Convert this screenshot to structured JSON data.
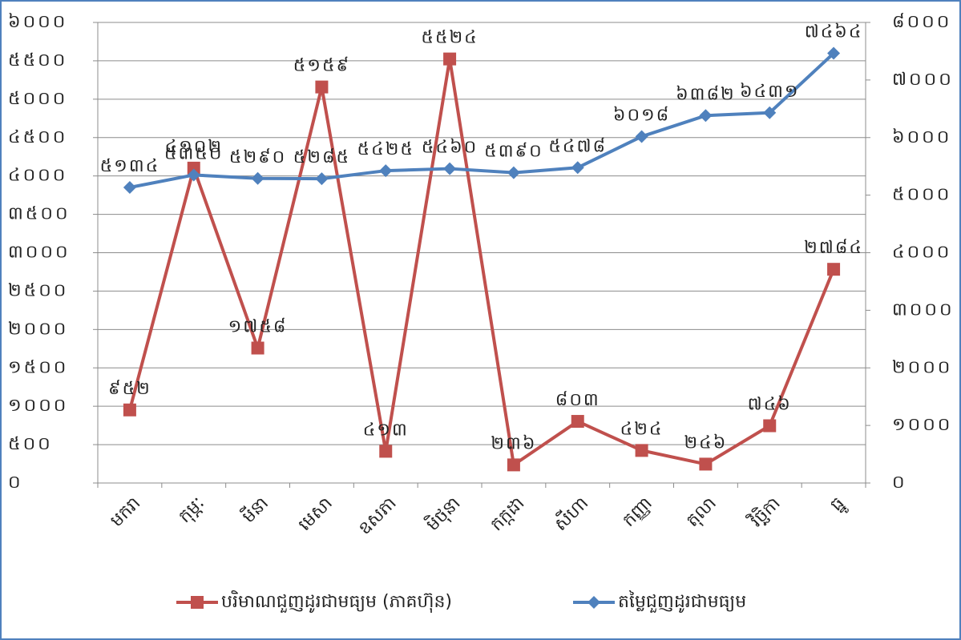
{
  "chart_data": {
    "type": "line",
    "categories": [
      "មករា",
      "កុម្ភៈ",
      "មីនា",
      "មេសា",
      "ឧសភា",
      "មិថុនា",
      "កក្កដា",
      "សីហា",
      "កញ្ញា",
      "តុលា",
      "វិច្ឆិកា",
      "ធ្នូ"
    ],
    "series": [
      {
        "name": "បរិមាណជួញដូរជាមធ្យម (ភាគហ៊ុន)",
        "color": "#c0504d",
        "marker": "square",
        "values": [
          952,
          4102,
          1758,
          5159,
          413,
          5524,
          236,
          803,
          424,
          246,
          746,
          2784
        ],
        "value_labels": [
          "៩៥២",
          "៤១០២",
          "១៧៥៨",
          "៥១៥៩",
          "៤១៣",
          "៥៥២៤",
          "២៣៦",
          "៨០៣",
          "៤២៤",
          "២៤៦",
          "៧៤៦",
          "២៧៨៤"
        ]
      },
      {
        "name": "តម្លៃជួញដូរជាមធ្យម",
        "color": "#4f81bd",
        "marker": "diamond",
        "axis": "y2",
        "values": [
          5134,
          5350,
          5290,
          5285,
          5425,
          5460,
          5390,
          5478,
          6018,
          6382,
          6431,
          7464
        ],
        "value_labels": [
          "៥១៣៤",
          "៥៣៥០",
          "៥២៩០",
          "៥២៨៥",
          "៥៤២៥",
          "៥៤៦០",
          "៥៣៩០",
          "៥៤៧៨",
          "៦០១៨",
          "៦៣៨២",
          "៦៤៣១",
          "៧៤៦៤"
        ]
      }
    ],
    "ylim": [
      0,
      6000
    ],
    "yticks": [
      {
        "value": 0,
        "label": "០"
      },
      {
        "value": 500,
        "label": "៥០០"
      },
      {
        "value": 1000,
        "label": "១០០០"
      },
      {
        "value": 1500,
        "label": "១៥០០"
      },
      {
        "value": 2000,
        "label": "២០០០"
      },
      {
        "value": 2500,
        "label": "២៥០០"
      },
      {
        "value": 3000,
        "label": "៣០០០"
      },
      {
        "value": 3500,
        "label": "៣៥០០"
      },
      {
        "value": 4000,
        "label": "៤០០០"
      },
      {
        "value": 4500,
        "label": "៤៥០០"
      },
      {
        "value": 5000,
        "label": "៥០០០"
      },
      {
        "value": 5500,
        "label": "៥៥០០"
      },
      {
        "value": 6000,
        "label": "៦០០០"
      }
    ],
    "y2lim": [
      0,
      8000
    ],
    "y2ticks": [
      {
        "value": 0,
        "label": "០"
      },
      {
        "value": 1000,
        "label": "១០០០"
      },
      {
        "value": 2000,
        "label": "២០០០"
      },
      {
        "value": 3000,
        "label": "៣០០០"
      },
      {
        "value": 4000,
        "label": "៤០០០"
      },
      {
        "value": 5000,
        "label": "៥០០០"
      },
      {
        "value": 6000,
        "label": "៦០០០"
      },
      {
        "value": 7000,
        "label": "៧០០០"
      },
      {
        "value": 8000,
        "label": "៨០០០"
      }
    ],
    "grid": true,
    "legend": "bottom"
  }
}
